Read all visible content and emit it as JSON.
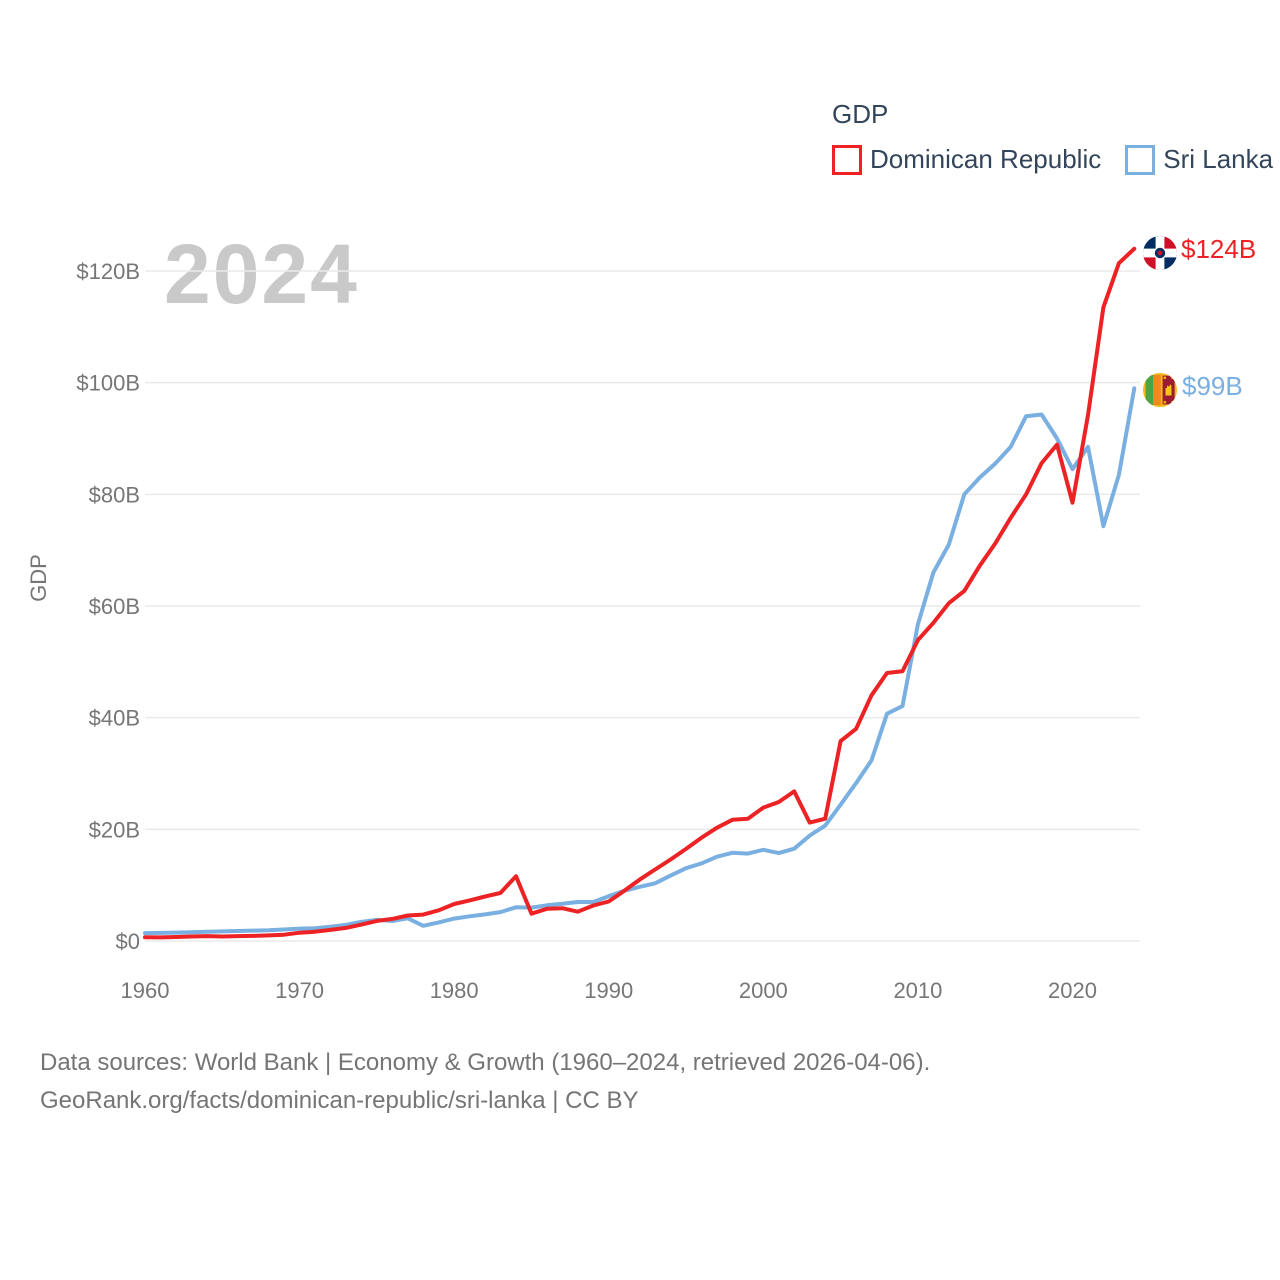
{
  "watermark": "2024",
  "legend": {
    "title": "GDP",
    "items": [
      {
        "label": "Dominican Republic",
        "color": "#ed2224"
      },
      {
        "label": "Sri Lanka",
        "color": "#79afe1"
      }
    ]
  },
  "end_labels": [
    {
      "series": "Dominican Republic",
      "label": "$124B",
      "flag": "dominican-republic-flag"
    },
    {
      "series": "Sri Lanka",
      "label": "$99B",
      "flag": "sri-lanka-flag"
    }
  ],
  "footer": {
    "line1": "Data sources: World Bank | Economy & Growth (1960–2024, retrieved 2026-04-06).",
    "line2": "GeoRank.org/facts/dominican-republic/sri-lanka | CC BY"
  },
  "chart_data": {
    "type": "line",
    "title": "GDP",
    "xlabel": "",
    "ylabel": "GDP",
    "grid": true,
    "legend_position": "top-right",
    "ylim": [
      0,
      130
    ],
    "xlim": [
      1960,
      2024
    ],
    "yticks": [
      {
        "value": 0,
        "label": "$0"
      },
      {
        "value": 20,
        "label": "$20B"
      },
      {
        "value": 40,
        "label": "$40B"
      },
      {
        "value": 60,
        "label": "$60B"
      },
      {
        "value": 80,
        "label": "$80B"
      },
      {
        "value": 100,
        "label": "$100B"
      },
      {
        "value": 120,
        "label": "$120B"
      }
    ],
    "xticks": [
      1960,
      1970,
      1980,
      1990,
      2000,
      2010,
      2020
    ],
    "x": [
      1960,
      1961,
      1962,
      1963,
      1964,
      1965,
      1966,
      1967,
      1968,
      1969,
      1970,
      1971,
      1972,
      1973,
      1974,
      1975,
      1976,
      1977,
      1978,
      1979,
      1980,
      1981,
      1982,
      1983,
      1984,
      1985,
      1986,
      1987,
      1988,
      1989,
      1990,
      1991,
      1992,
      1993,
      1994,
      1995,
      1996,
      1997,
      1998,
      1999,
      2000,
      2001,
      2002,
      2003,
      2004,
      2005,
      2006,
      2007,
      2008,
      2009,
      2010,
      2011,
      2012,
      2013,
      2014,
      2015,
      2016,
      2017,
      2018,
      2019,
      2020,
      2021,
      2022,
      2023,
      2024
    ],
    "series": [
      {
        "name": "Dominican Republic",
        "color": "#ed2224",
        "values": [
          0.67,
          0.64,
          0.72,
          0.8,
          0.88,
          0.81,
          0.88,
          0.92,
          1.0,
          1.12,
          1.49,
          1.67,
          1.99,
          2.35,
          2.93,
          3.6,
          3.95,
          4.56,
          4.73,
          5.5,
          6.63,
          7.27,
          7.97,
          8.62,
          11.6,
          4.89,
          5.76,
          5.87,
          5.25,
          6.35,
          7.07,
          9.0,
          11.0,
          12.8,
          14.6,
          16.5,
          18.5,
          20.3,
          21.7,
          21.9,
          23.9,
          24.9,
          26.8,
          21.2,
          21.9,
          35.8,
          38.0,
          44.0,
          48.0,
          48.3,
          53.9,
          57.0,
          60.5,
          62.7,
          67.2,
          71.2,
          75.8,
          80.0,
          85.6,
          88.9,
          78.5,
          94.2,
          113.5,
          121.4,
          124.0
        ]
      },
      {
        "name": "Sri Lanka",
        "color": "#79afe1",
        "values": [
          1.41,
          1.45,
          1.5,
          1.56,
          1.64,
          1.72,
          1.8,
          1.86,
          1.91,
          2.06,
          2.22,
          2.28,
          2.56,
          2.9,
          3.42,
          3.79,
          3.59,
          4.07,
          2.73,
          3.33,
          4.02,
          4.42,
          4.77,
          5.17,
          6.04,
          5.98,
          6.4,
          6.68,
          6.98,
          6.99,
          8.03,
          9.0,
          9.7,
          10.34,
          11.72,
          13.03,
          13.9,
          15.09,
          15.79,
          15.66,
          16.33,
          15.75,
          16.54,
          18.88,
          20.66,
          24.41,
          28.28,
          32.35,
          40.71,
          42.07,
          56.73,
          66.0,
          71.0,
          80.0,
          83.0,
          85.5,
          88.5,
          94.0,
          94.3,
          90.0,
          84.5,
          88.5,
          74.3,
          83.5,
          99.0
        ]
      }
    ]
  },
  "colors": {
    "grid": "#eaeaea",
    "axis_text": "#767676",
    "watermark": "#c9c9c9",
    "legend_text": "#33455a"
  }
}
